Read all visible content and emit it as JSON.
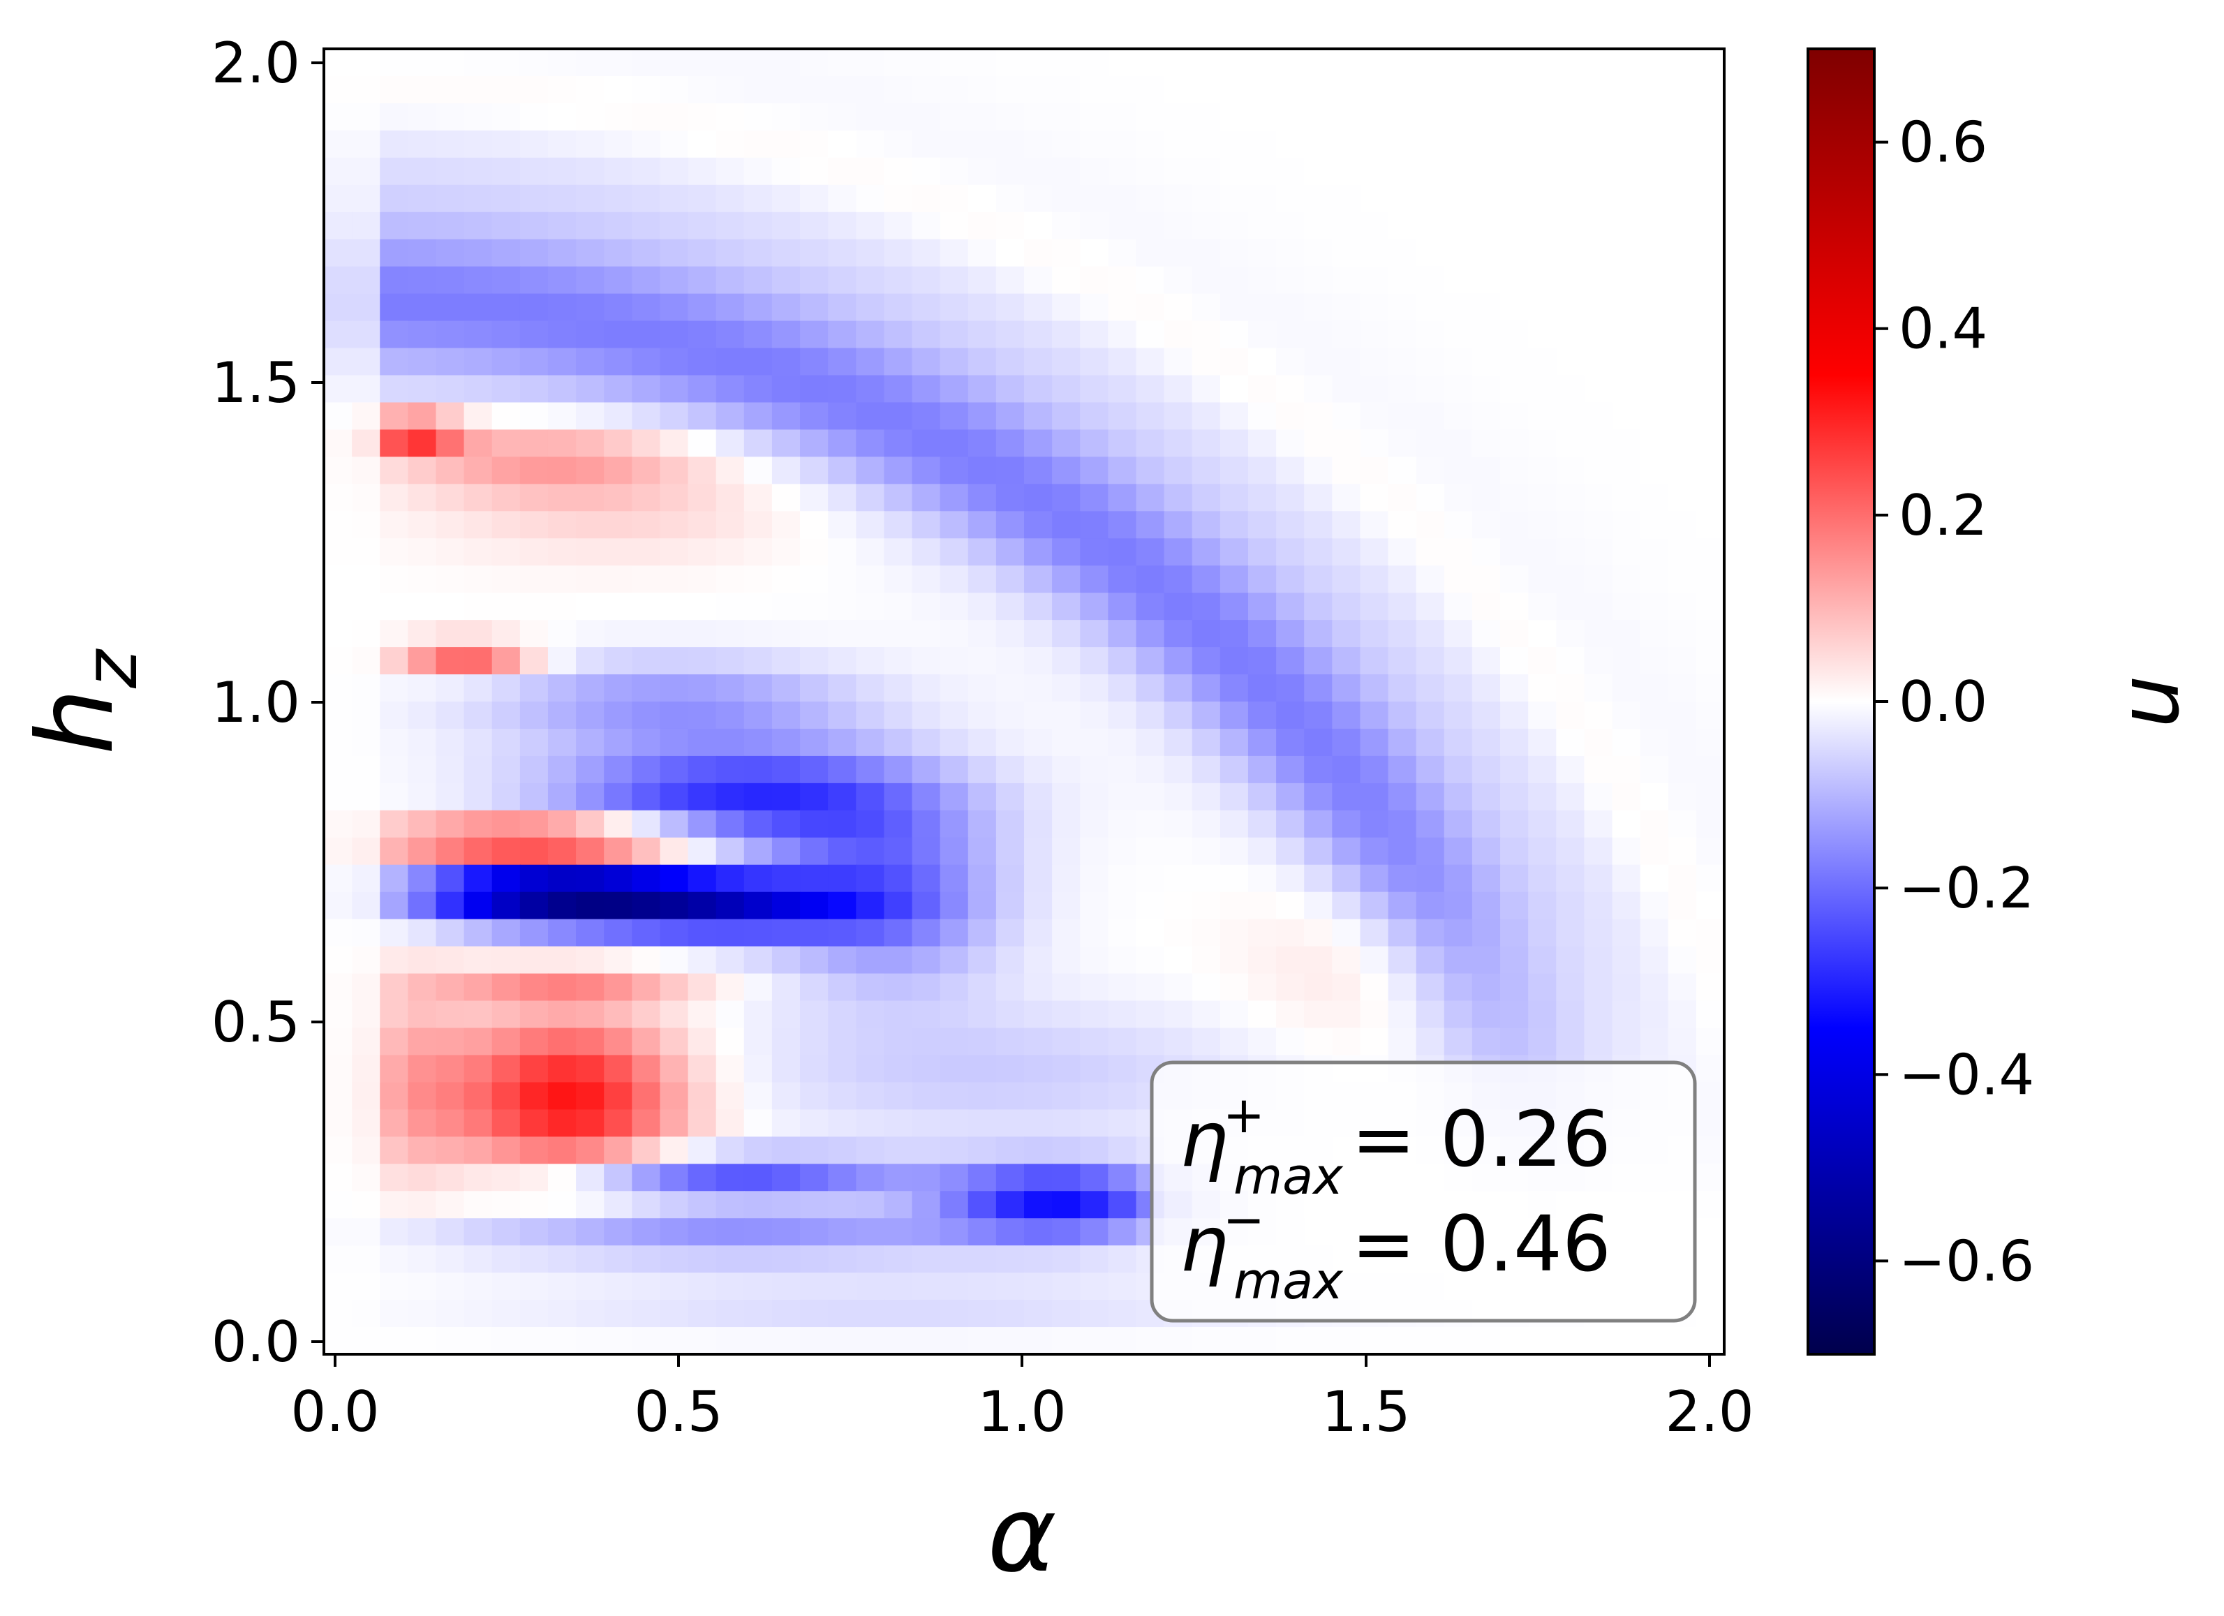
{
  "chart_data": {
    "type": "heatmap",
    "title": "",
    "xlabel": "α",
    "ylabel": "h_z",
    "xlabel_text": "α",
    "ylabel_main": "h",
    "ylabel_sub": "z",
    "xlim": [
      0.0,
      2.0
    ],
    "ylim": [
      0.0,
      2.0
    ],
    "x_ticks": [
      "0.0",
      "0.5",
      "1.0",
      "1.5",
      "2.0"
    ],
    "y_ticks": [
      "0.0",
      "0.5",
      "1.0",
      "1.5",
      "2.0"
    ],
    "colorbar": {
      "label": "u",
      "colormap": "seismic",
      "vmin": -0.7,
      "vmax": 0.7,
      "ticks": [
        "0.6",
        "0.4",
        "0.2",
        "0.0",
        "−0.2",
        "−0.4",
        "−0.6"
      ],
      "tick_values": [
        0.6,
        0.4,
        0.2,
        0.0,
        -0.2,
        -0.4,
        -0.6
      ]
    },
    "grid": false,
    "annotation": {
      "line1": {
        "symbol": "η",
        "sup": "+",
        "sub": "max",
        "value": "= 0.26"
      },
      "line2": {
        "symbol": "η",
        "sup": "−",
        "sub": "max",
        "value": "= 0.46"
      },
      "placement": "bottom-right"
    },
    "features": [
      {
        "cx": 0.33,
        "cy": 0.38,
        "sx": 0.12,
        "sy": 0.09,
        "amp": 0.33
      },
      {
        "cx": 0.1,
        "cy": 0.4,
        "sx": 0.06,
        "sy": 0.12,
        "amp": 0.1
      },
      {
        "cx": 0.3,
        "cy": 0.78,
        "sx": 0.16,
        "sy": 0.025,
        "amp": 0.42
      },
      {
        "cx": 0.1,
        "cy": 1.42,
        "sx": 0.05,
        "sy": 0.02,
        "amp": 0.33
      },
      {
        "cx": 0.3,
        "cy": 1.38,
        "sx": 0.16,
        "sy": 0.04,
        "amp": 0.13
      },
      {
        "cx": 0.4,
        "cy": 1.3,
        "sx": 0.2,
        "sy": 0.06,
        "amp": 0.06
      },
      {
        "cx": 0.18,
        "cy": 1.07,
        "sx": 0.07,
        "sy": 0.02,
        "amp": 0.24
      },
      {
        "cx": 0.32,
        "cy": 0.56,
        "sx": 0.14,
        "sy": 0.02,
        "amp": 0.13
      },
      {
        "cx": 1.52,
        "cy": 0.6,
        "sx": 0.14,
        "sy": 0.12,
        "amp": 0.05
      },
      {
        "cx": 0.3,
        "cy": 0.7,
        "sx": 0.14,
        "sy": 0.035,
        "amp": -0.55
      },
      {
        "cx": 0.55,
        "cy": 0.68,
        "sx": 0.14,
        "sy": 0.035,
        "amp": -0.38
      },
      {
        "cx": 0.58,
        "cy": 0.85,
        "sx": 0.2,
        "sy": 0.06,
        "amp": -0.28
      },
      {
        "cx": 0.8,
        "cy": 0.7,
        "sx": 0.12,
        "sy": 0.1,
        "amp": -0.2
      },
      {
        "cx": 0.48,
        "cy": 1.0,
        "sx": 0.2,
        "sy": 0.05,
        "amp": -0.14
      },
      {
        "cx": 0.55,
        "cy": 0.26,
        "sx": 0.2,
        "sy": 0.025,
        "amp": -0.24
      },
      {
        "cx": 1.05,
        "cy": 0.22,
        "sx": 0.12,
        "sy": 0.04,
        "amp": -0.32
      },
      {
        "cx": 0.55,
        "cy": 0.17,
        "sx": 0.3,
        "sy": 0.03,
        "amp": -0.15
      },
      {
        "cx": 0.95,
        "cy": 0.42,
        "sx": 0.3,
        "sy": 0.08,
        "amp": -0.07
      },
      {
        "cx": 0.8,
        "cy": 0.05,
        "sx": 0.4,
        "sy": 0.05,
        "amp": -0.05
      }
    ],
    "arc": {
      "cx": 0.0,
      "cy": -0.2,
      "r": 1.82,
      "width": 0.08,
      "amp": -0.14
    },
    "arc_outer": {
      "cx": 0.0,
      "cy": -0.2,
      "r": 1.95,
      "width": 0.18,
      "amp": -0.05
    },
    "arc_pink": {
      "cx": 0.0,
      "cy": -0.2,
      "r": 2.15,
      "width": 0.05,
      "amp": 0.03
    }
  }
}
